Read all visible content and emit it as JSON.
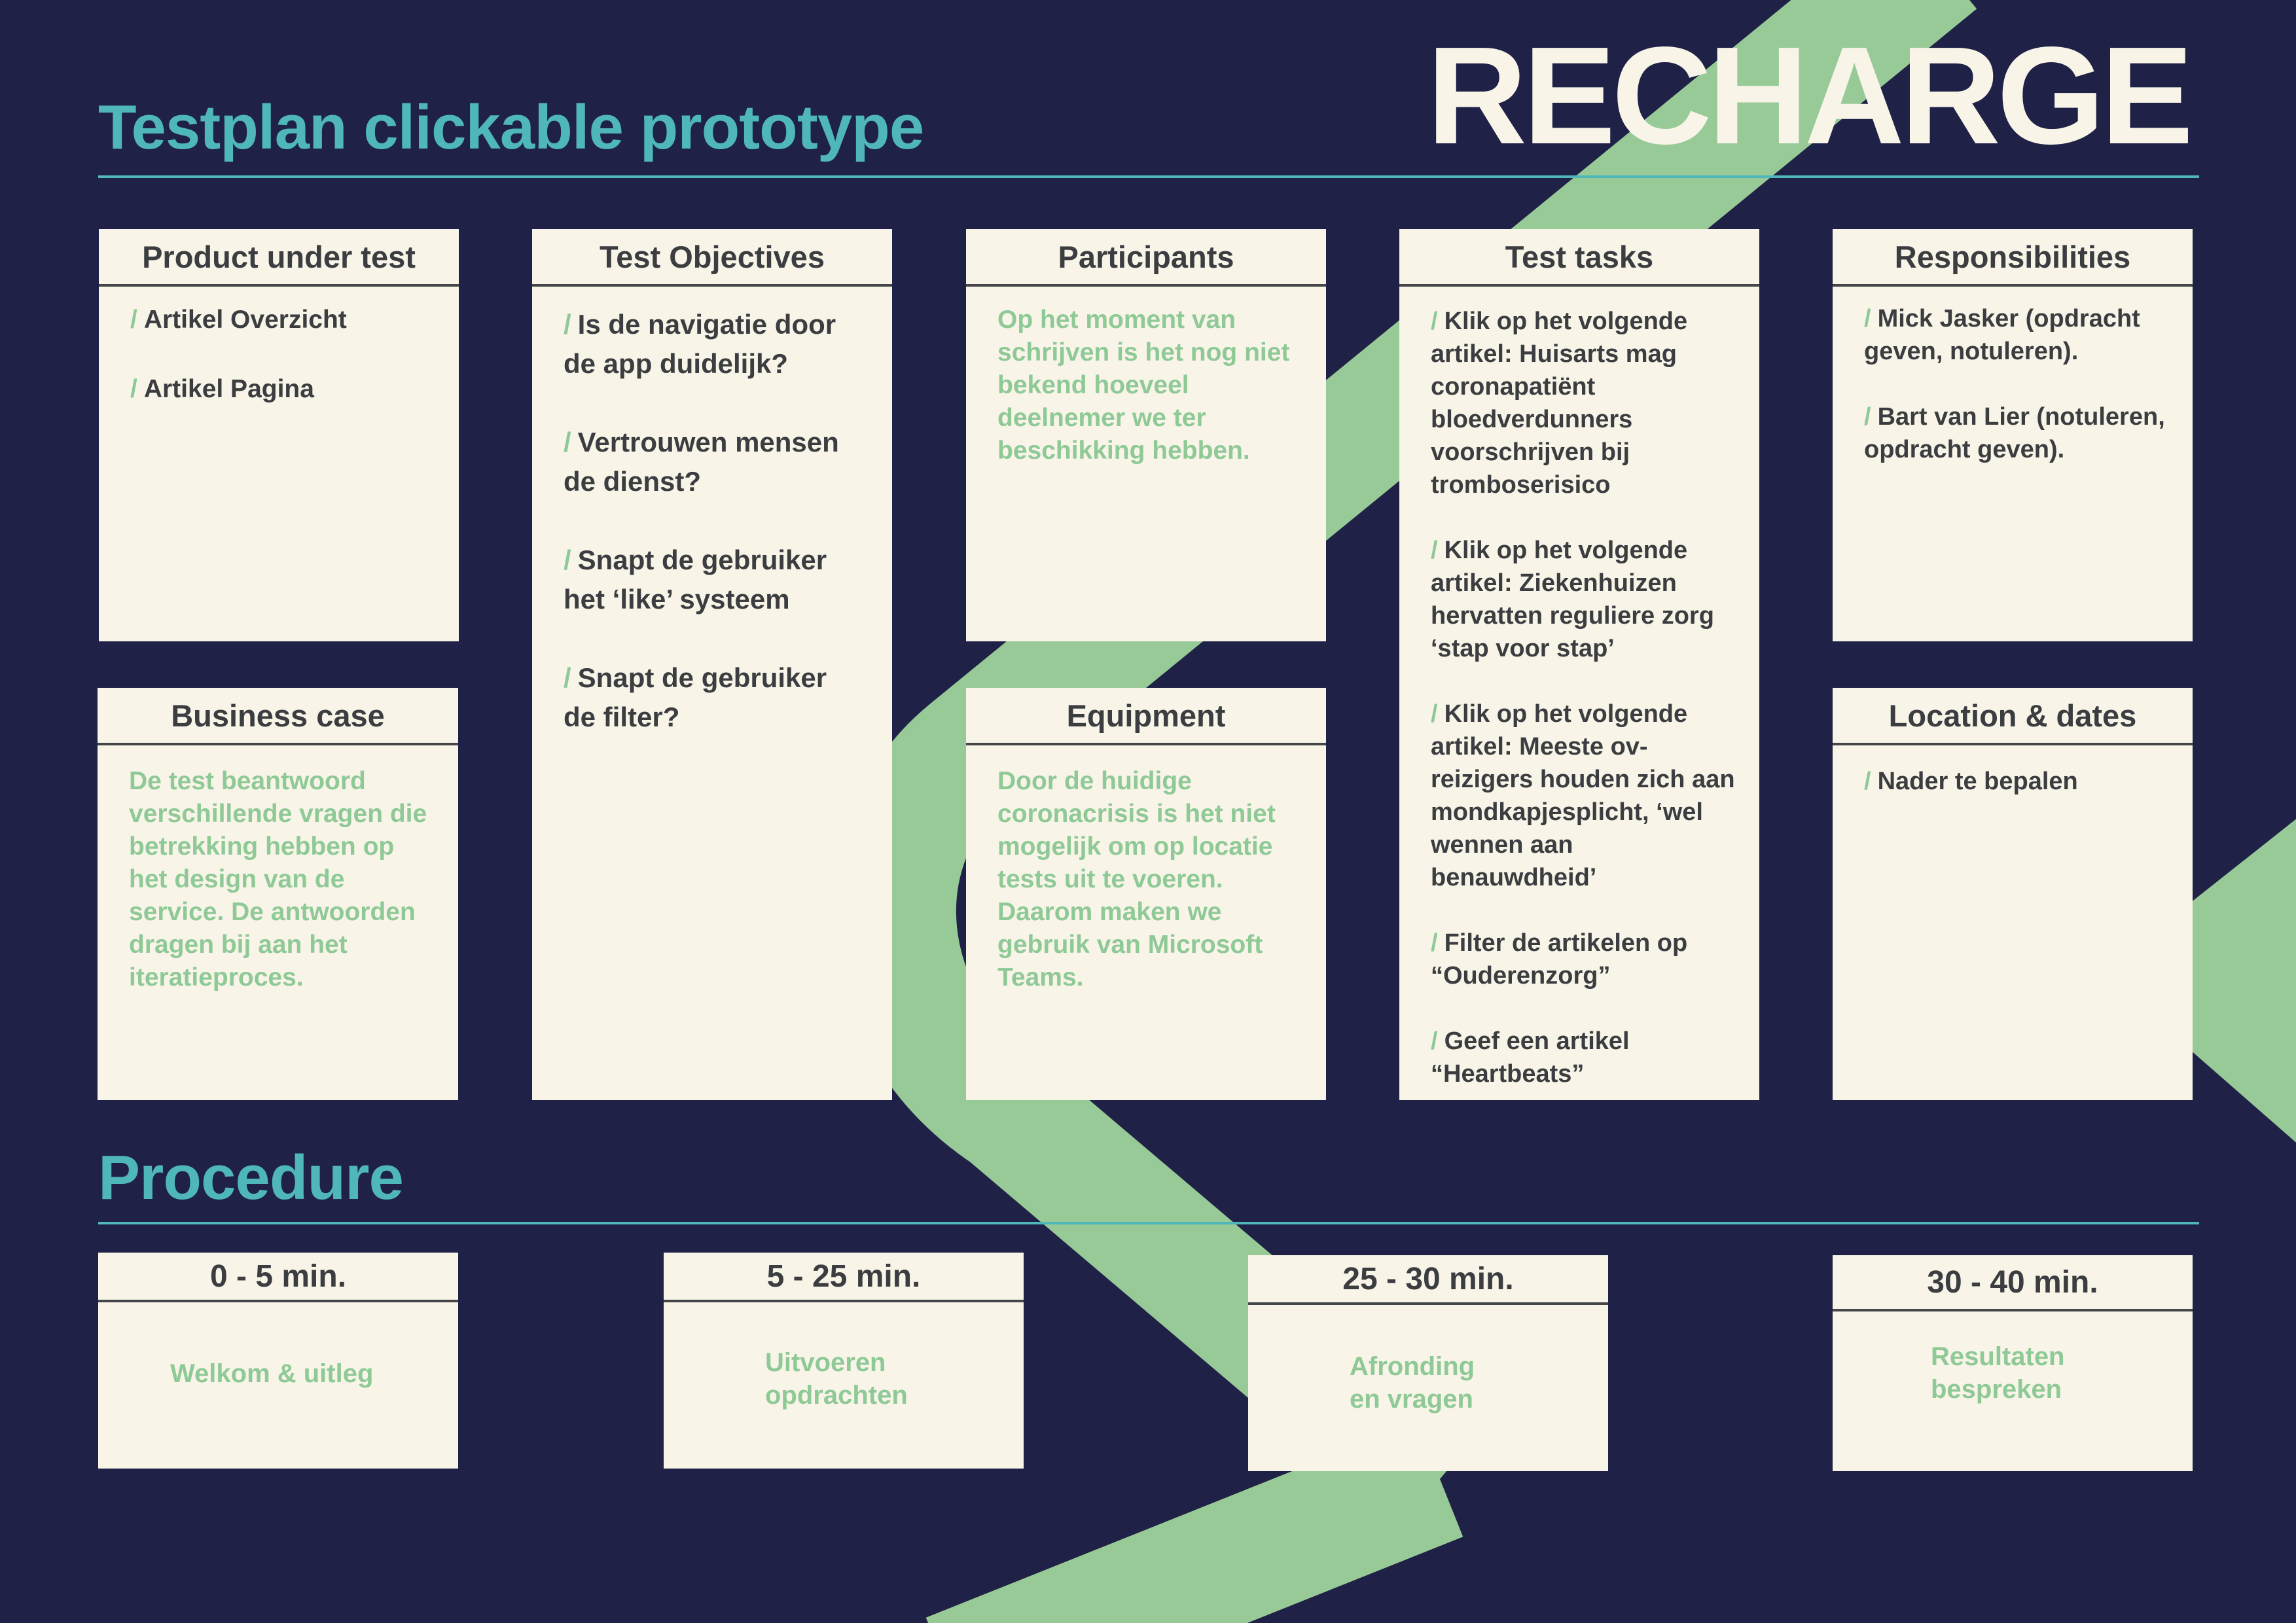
{
  "header": {
    "title": "Testplan clickable prototype",
    "brand": "RECHARGE"
  },
  "cards": {
    "product": {
      "heading": "Product under test",
      "items": [
        "Artikel Overzicht",
        "Artikel Pagina"
      ]
    },
    "business": {
      "heading": "Business case",
      "text": "De test beantwoord verschillende vragen die betrekking hebben op het design van de service. De antwoorden dragen bij aan het iteratieproces."
    },
    "objectives": {
      "heading": "Test Objectives",
      "items": [
        "Is de navigatie door de app duidelijk?",
        "Vertrouwen mensen de dienst?",
        "Snapt de gebruiker het ‘like’ systeem",
        "Snapt de gebruiker de filter?"
      ]
    },
    "participants": {
      "heading": "Participants",
      "text": "Op het moment van schrijven is het nog niet bekend hoeveel deelnemer we ter beschikking hebben."
    },
    "equipment": {
      "heading": "Equipment",
      "text": "Door de huidige coronacrisis is het niet mogelijk om op locatie tests uit te voeren. Daarom maken we gebruik van Microsoft Teams."
    },
    "tasks": {
      "heading": "Test tasks",
      "items": [
        "Klik op het volgende artikel: Huisarts mag coronapatiënt bloedverdunners voorschrijven bij tromboserisico",
        "Klik op het volgende artikel: Ziekenhuizen hervatten reguliere zorg ‘stap voor stap’",
        "Klik op het volgende artikel: Meeste ov-reizigers houden zich aan mondkapjesplicht, ‘wel wennen aan benauwdheid’",
        "Filter de artikelen op “Ouderenzorg”",
        "Geef een artikel “Heartbeats”"
      ]
    },
    "responsibilities": {
      "heading": "Responsibilities",
      "items": [
        "Mick Jasker (opdracht geven, notuleren).",
        "Bart van Lier (notuleren, opdracht geven)."
      ]
    },
    "location": {
      "heading": "Location & dates",
      "items": [
        "Nader te bepalen"
      ]
    }
  },
  "procedure": {
    "title": "Procedure",
    "steps": [
      {
        "time": "0 - 5 min.",
        "text": "Welkom & uitleg"
      },
      {
        "time": "5 - 25 min.",
        "text": "Uitvoeren\nopdrachten"
      },
      {
        "time": "25 - 30 min.",
        "text": "Afronding\nen vragen"
      },
      {
        "time": "30 - 40 min.",
        "text": "Resultaten\nbespreken"
      }
    ]
  },
  "colors": {
    "background": "#1f2147",
    "accent_teal": "#4fb6bb",
    "accent_green": "#98ca97",
    "card": "#f8f5e8",
    "text_dark": "#3b3d40"
  }
}
